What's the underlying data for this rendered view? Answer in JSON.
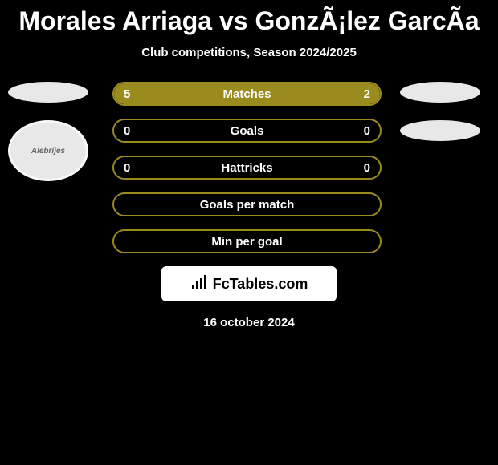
{
  "title": "Morales Arriaga vs GonzÃ¡lez GarcÃ­a",
  "subtitle": "Club competitions, Season 2024/2025",
  "colors": {
    "olive": "#9a8b1f",
    "border_olive": "#9a8b1f",
    "background": "#000000",
    "text": "#ffffff",
    "badge_bg": "#e8e8e8"
  },
  "left_team": {
    "badge_text": "Alebrijes"
  },
  "bars": [
    {
      "label": "Matches",
      "left_value": "5",
      "right_value": "2",
      "left_pct": 71,
      "right_pct": 29,
      "fill_color": "#9a8b1f",
      "border_color": "#9a8b1f"
    },
    {
      "label": "Goals",
      "left_value": "0",
      "right_value": "0",
      "left_pct": 0,
      "right_pct": 0,
      "fill_color": "#9a8b1f",
      "border_color": "#9a8b1f"
    },
    {
      "label": "Hattricks",
      "left_value": "0",
      "right_value": "0",
      "left_pct": 0,
      "right_pct": 0,
      "fill_color": "#9a8b1f",
      "border_color": "#9a8b1f"
    },
    {
      "label": "Goals per match",
      "left_value": "",
      "right_value": "",
      "left_pct": 0,
      "right_pct": 0,
      "fill_color": "#9a8b1f",
      "border_color": "#9a8b1f"
    },
    {
      "label": "Min per goal",
      "left_value": "",
      "right_value": "",
      "left_pct": 0,
      "right_pct": 0,
      "fill_color": "#9a8b1f",
      "border_color": "#9a8b1f"
    }
  ],
  "footer_logo": "FcTables.com",
  "date": "16 october 2024"
}
